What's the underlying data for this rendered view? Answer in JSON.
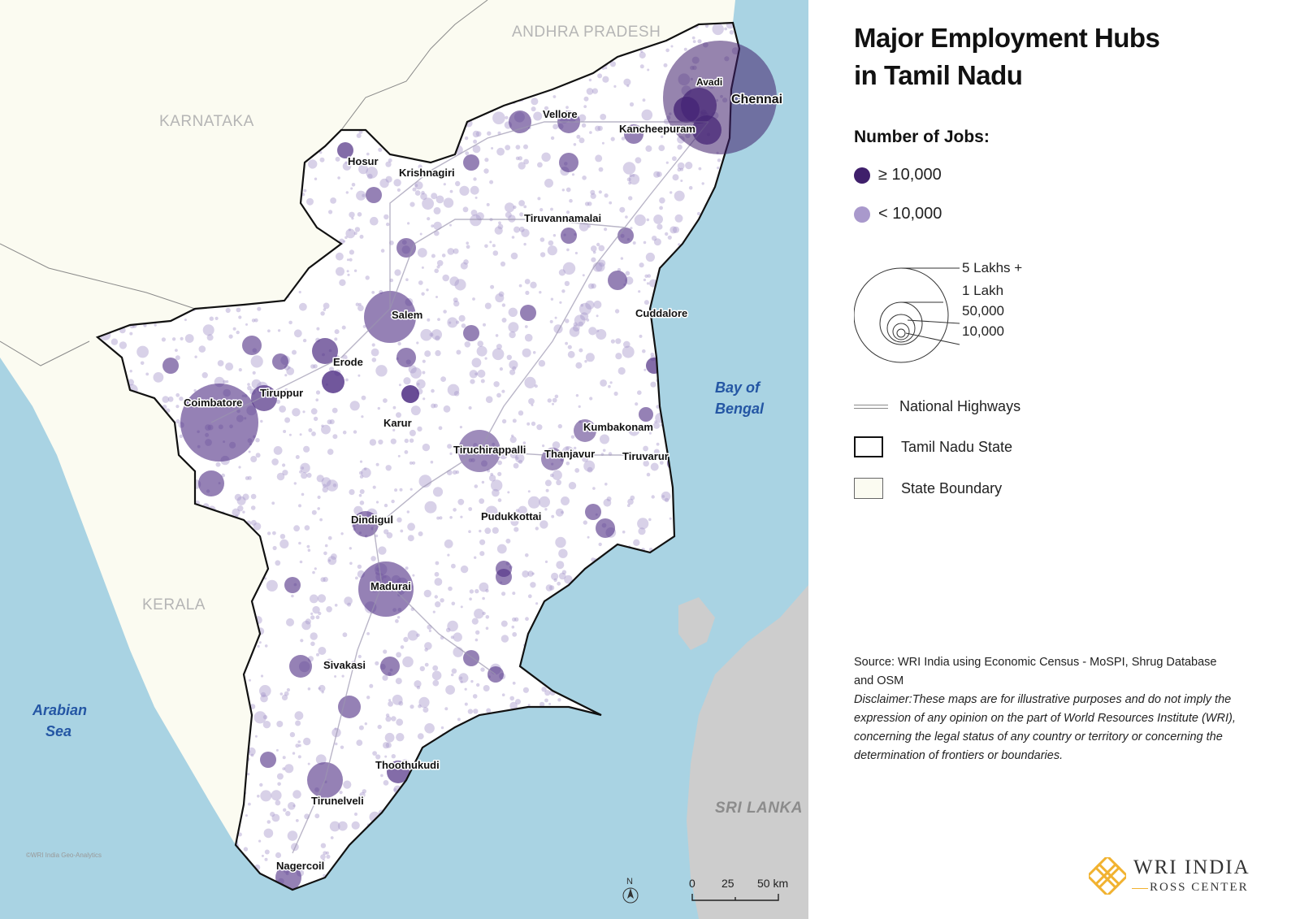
{
  "title_line1": "Major Employment Hubs",
  "title_line2": "in Tamil Nadu",
  "legend": {
    "jobs_heading": "Number of Jobs:",
    "high_label": "≥ 10,000",
    "low_label": "< 10,000",
    "size_labels": [
      "5 Lakhs +",
      "1 Lakh",
      "50,000",
      "10,000"
    ],
    "highways_label": "National Highways",
    "state_label": "Tamil Nadu State",
    "boundary_label": "State Boundary"
  },
  "colors": {
    "high": "#3f1f6b",
    "low": "#a999cc",
    "sea": "#a9d3e3",
    "land": "#fbfbf1",
    "srilanka": "#cdcdcd",
    "boundary": "#111111"
  },
  "regions": {
    "andhra": "ANDHRA PRADESH",
    "karnataka": "KARNATAKA",
    "kerala": "KERALA",
    "srilanka": "SRI LANKA"
  },
  "seas": {
    "bay_line1": "Bay of",
    "bay_line2": "Bengal",
    "arabian_line1": "Arabian",
    "arabian_line2": "Sea"
  },
  "places": [
    {
      "name": "Chennai"
    },
    {
      "name": "Avadi"
    },
    {
      "name": "Vellore"
    },
    {
      "name": "Kancheepuram"
    },
    {
      "name": "Hosur"
    },
    {
      "name": "Krishnagiri"
    },
    {
      "name": "Tiruvannamalai"
    },
    {
      "name": "Salem"
    },
    {
      "name": "Cuddalore"
    },
    {
      "name": "Erode"
    },
    {
      "name": "Tiruppur"
    },
    {
      "name": "Coimbatore"
    },
    {
      "name": "Karur"
    },
    {
      "name": "Kumbakonam"
    },
    {
      "name": "Tiruchirappalli"
    },
    {
      "name": "Thanjavur"
    },
    {
      "name": "Tiruvarur"
    },
    {
      "name": "Dindigul"
    },
    {
      "name": "Pudukkottai"
    },
    {
      "name": "Madurai"
    },
    {
      "name": "Sivakasi"
    },
    {
      "name": "Thoothukudi"
    },
    {
      "name": "Tirunelveli"
    },
    {
      "name": "Nagercoil"
    }
  ],
  "source": "Source: WRI India using Economic Census - MoSPI, Shrug Database and OSM",
  "disclaimer": "Disclaimer:These maps are for illustrative purposes and do not imply the expression of any opinion on the part of World Resources Institute (WRI), concerning the legal status of any country or territory or concerning the determination of frontiers or boundaries.",
  "scale": {
    "zero": "0",
    "mid": "25",
    "end": "50 km",
    "north": "N"
  },
  "watermark": "©WRI India Geo-Analytics",
  "logo": {
    "line1": "WRI INDIA",
    "line2": "ROSS CENTER"
  }
}
